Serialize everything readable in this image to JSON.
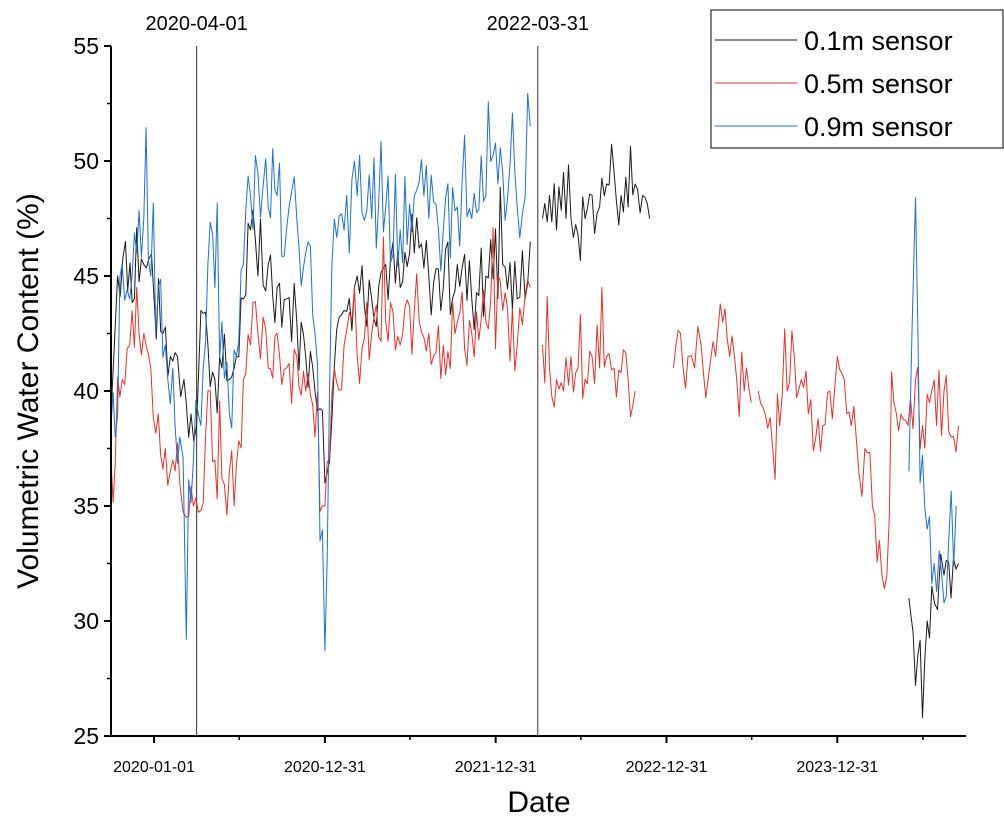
{
  "chart_data": {
    "type": "line",
    "xlabel": "Date",
    "ylabel": "Volumetric Water Content (%)",
    "xlim": [
      "2019-10-01",
      "2024-10-01"
    ],
    "ylim": [
      25,
      55
    ],
    "yticks": [
      25,
      30,
      35,
      40,
      45,
      50,
      55
    ],
    "xticks": [
      "2020-01-01",
      "2020-12-31",
      "2021-12-31",
      "2022-12-31",
      "2023-12-31"
    ],
    "reference_lines": [
      {
        "date": "2020-04-01",
        "label": "2020-04-01"
      },
      {
        "date": "2022-03-31",
        "label": "2022-03-31"
      }
    ],
    "legend": {
      "position": "top-right"
    },
    "series": [
      {
        "name": "0.1m sensor",
        "color": "#1a1a1a",
        "segments": [
          [
            [
              "2019-10-01",
              39.0
            ],
            [
              "2019-10-15",
              45.0
            ],
            [
              "2019-11-01",
              46.5
            ],
            [
              "2019-11-20",
              44.0
            ],
            [
              "2019-12-10",
              45.5
            ],
            [
              "2020-01-01",
              44.0
            ],
            [
              "2020-01-20",
              42.5
            ],
            [
              "2020-02-05",
              41.5
            ],
            [
              "2020-02-20",
              41.5
            ],
            [
              "2020-03-05",
              40.5
            ],
            [
              "2020-03-20",
              39.0
            ],
            [
              "2020-04-01",
              38.5
            ],
            [
              "2020-04-10",
              43.5
            ],
            [
              "2020-04-25",
              42.0
            ],
            [
              "2020-05-10",
              40.5
            ],
            [
              "2020-05-25",
              41.0
            ],
            [
              "2020-06-10",
              40.5
            ],
            [
              "2020-06-25",
              41.5
            ],
            [
              "2020-07-10",
              44.0
            ],
            [
              "2020-07-25",
              47.0
            ],
            [
              "2020-08-10",
              45.0
            ],
            [
              "2020-09-01",
              45.5
            ],
            [
              "2020-09-20",
              44.5
            ],
            [
              "2020-10-10",
              44.0
            ],
            [
              "2020-11-01",
              43.0
            ],
            [
              "2020-11-20",
              41.5
            ],
            [
              "2020-12-10",
              40.0
            ],
            [
              "2020-12-31",
              36.0
            ],
            [
              "2021-01-20",
              41.0
            ],
            [
              "2021-02-10",
              43.5
            ],
            [
              "2021-03-10",
              45.0
            ],
            [
              "2021-04-10",
              44.0
            ],
            [
              "2021-05-10",
              45.5
            ],
            [
              "2021-06-10",
              44.5
            ],
            [
              "2021-07-10",
              46.0
            ],
            [
              "2021-08-10",
              45.0
            ],
            [
              "2021-09-10",
              44.5
            ],
            [
              "2021-10-10",
              45.5
            ],
            [
              "2021-11-10",
              44.0
            ],
            [
              "2021-12-10",
              45.0
            ],
            [
              "2022-01-15",
              45.5
            ],
            [
              "2022-02-15",
              44.0
            ],
            [
              "2022-03-15",
              46.5
            ]
          ],
          [
            [
              "2022-04-10",
              47.5
            ],
            [
              "2022-04-25",
              48.5
            ],
            [
              "2022-05-10",
              47.0
            ],
            [
              "2022-05-25",
              49.5
            ],
            [
              "2022-06-10",
              47.5
            ],
            [
              "2022-06-25",
              46.8
            ],
            [
              "2022-07-10",
              47.5
            ],
            [
              "2022-07-25",
              48.5
            ],
            [
              "2022-08-10",
              48.0
            ],
            [
              "2022-08-25",
              49.0
            ],
            [
              "2022-09-10",
              49.5
            ],
            [
              "2022-09-25",
              48.5
            ],
            [
              "2022-10-10",
              48.0
            ],
            [
              "2022-10-25",
              49.0
            ],
            [
              "2022-11-10",
              48.5
            ],
            [
              "2022-11-25",
              47.5
            ]
          ],
          [
            [
              "2024-06-01",
              31.0
            ],
            [
              "2024-06-10",
              29.5
            ],
            [
              "2024-06-20",
              28.5
            ],
            [
              "2024-06-30",
              25.8
            ],
            [
              "2024-07-10",
              30.0
            ],
            [
              "2024-07-20",
              31.5
            ],
            [
              "2024-08-01",
              30.5
            ],
            [
              "2024-08-15",
              32.0
            ],
            [
              "2024-08-30",
              31.0
            ],
            [
              "2024-09-15",
              32.5
            ]
          ]
        ]
      },
      {
        "name": "0.5m sensor",
        "color": "#e8302b",
        "segments": [
          [
            [
              "2019-10-01",
              37.0
            ],
            [
              "2019-10-10",
              36.8
            ],
            [
              "2019-10-25",
              40.5
            ],
            [
              "2019-11-10",
              42.0
            ],
            [
              "2019-11-25",
              44.5
            ],
            [
              "2019-12-10",
              42.5
            ],
            [
              "2019-12-25",
              41.0
            ],
            [
              "2020-01-10",
              39.0
            ],
            [
              "2020-01-25",
              37.5
            ],
            [
              "2020-02-10",
              37.0
            ],
            [
              "2020-02-25",
              36.0
            ],
            [
              "2020-03-10",
              34.5
            ],
            [
              "2020-03-25",
              35.0
            ],
            [
              "2020-04-10",
              34.8
            ],
            [
              "2020-04-25",
              40.0
            ],
            [
              "2020-05-10",
              37.0
            ],
            [
              "2020-05-25",
              36.2
            ],
            [
              "2020-06-10",
              36.5
            ],
            [
              "2020-06-25",
              36.8
            ],
            [
              "2020-07-10",
              40.5
            ],
            [
              "2020-07-25",
              42.0
            ],
            [
              "2020-08-10",
              42.5
            ],
            [
              "2020-09-01",
              41.0
            ],
            [
              "2020-09-20",
              42.5
            ],
            [
              "2020-10-10",
              41.0
            ],
            [
              "2020-11-01",
              41.5
            ],
            [
              "2020-11-20",
              40.0
            ],
            [
              "2020-12-10",
              38.0
            ],
            [
              "2020-12-31",
              35.0
            ],
            [
              "2021-01-20",
              41.0
            ],
            [
              "2021-02-10",
              42.0
            ],
            [
              "2021-03-10",
              41.5
            ],
            [
              "2021-04-10",
              42.5
            ],
            [
              "2021-05-10",
              43.0
            ],
            [
              "2021-06-10",
              42.0
            ],
            [
              "2021-07-10",
              43.5
            ],
            [
              "2021-08-10",
              42.5
            ],
            [
              "2021-09-10",
              42.0
            ],
            [
              "2021-10-10",
              43.0
            ],
            [
              "2021-11-10",
              42.5
            ],
            [
              "2021-12-10",
              43.0
            ],
            [
              "2022-01-15",
              43.5
            ],
            [
              "2022-02-15",
              42.0
            ],
            [
              "2022-03-15",
              44.5
            ]
          ],
          [
            [
              "2022-04-10",
              42.0
            ],
            [
              "2022-04-25",
              41.0
            ],
            [
              "2022-05-10",
              40.5
            ],
            [
              "2022-05-25",
              40.0
            ],
            [
              "2022-06-10",
              41.5
            ],
            [
              "2022-06-25",
              41.0
            ],
            [
              "2022-07-10",
              40.5
            ],
            [
              "2022-07-25",
              41.5
            ],
            [
              "2022-08-10",
              41.0
            ],
            [
              "2022-08-25",
              41.5
            ],
            [
              "2022-09-10",
              41.0
            ],
            [
              "2022-09-25",
              40.8
            ],
            [
              "2022-10-10",
              40.5
            ],
            [
              "2022-10-25",
              40.0
            ]
          ],
          [
            [
              "2023-01-15",
              41.0
            ],
            [
              "2023-01-30",
              42.5
            ],
            [
              "2023-02-15",
              41.5
            ],
            [
              "2023-03-01",
              41.0
            ],
            [
              "2023-03-15",
              42.0
            ],
            [
              "2023-03-30",
              40.5
            ],
            [
              "2023-04-15",
              41.5
            ],
            [
              "2023-04-30",
              43.0
            ],
            [
              "2023-05-15",
              41.5
            ],
            [
              "2023-05-30",
              40.5
            ],
            [
              "2023-06-15",
              40.0
            ],
            [
              "2023-06-30",
              39.5
            ]
          ],
          [
            [
              "2023-07-15",
              40.0
            ],
            [
              "2023-07-30",
              39.0
            ],
            [
              "2023-08-15",
              37.5
            ],
            [
              "2023-08-30",
              38.5
            ],
            [
              "2023-09-15",
              40.0
            ],
            [
              "2023-09-30",
              41.5
            ],
            [
              "2023-10-15",
              40.5
            ],
            [
              "2023-10-30",
              39.0
            ],
            [
              "2023-11-15",
              38.0
            ],
            [
              "2023-11-30",
              38.5
            ],
            [
              "2023-12-15",
              40.0
            ],
            [
              "2023-12-31",
              41.5
            ],
            [
              "2024-01-15",
              40.5
            ],
            [
              "2024-01-30",
              38.5
            ],
            [
              "2024-02-15",
              36.5
            ],
            [
              "2024-02-28",
              37.5
            ],
            [
              "2024-03-15",
              35.0
            ],
            [
              "2024-03-30",
              33.5
            ],
            [
              "2024-04-15",
              32.0
            ],
            [
              "2024-04-30",
              39.5
            ],
            [
              "2024-05-15",
              39.0
            ],
            [
              "2024-05-30",
              38.5
            ],
            [
              "2024-06-15",
              40.5
            ],
            [
              "2024-06-30",
              38.5
            ],
            [
              "2024-07-15",
              39.5
            ],
            [
              "2024-07-30",
              38.5
            ],
            [
              "2024-08-15",
              40.0
            ],
            [
              "2024-08-30",
              38.0
            ],
            [
              "2024-09-15",
              38.5
            ]
          ]
        ]
      },
      {
        "name": "0.9m sensor",
        "color": "#1f6fd6",
        "segments": [
          [
            [
              "2019-10-01",
              38.5
            ],
            [
              "2019-10-10",
              38.0
            ],
            [
              "2019-10-25",
              45.5
            ],
            [
              "2019-11-10",
              44.0
            ],
            [
              "2019-11-25",
              46.0
            ],
            [
              "2019-12-10",
              47.5
            ],
            [
              "2019-12-25",
              45.0
            ],
            [
              "2020-01-10",
              44.5
            ],
            [
              "2020-01-25",
              42.0
            ],
            [
              "2020-02-10",
              41.0
            ],
            [
              "2020-02-25",
              38.0
            ],
            [
              "2020-03-10",
              29.2
            ],
            [
              "2020-03-25",
              37.0
            ],
            [
              "2020-04-10",
              38.5
            ],
            [
              "2020-04-25",
              45.5
            ],
            [
              "2020-05-10",
              44.5
            ],
            [
              "2020-05-25",
              43.0
            ],
            [
              "2020-06-10",
              39.0
            ],
            [
              "2020-06-25",
              41.5
            ],
            [
              "2020-07-10",
              45.5
            ],
            [
              "2020-07-25",
              48.5
            ],
            [
              "2020-08-10",
              49.5
            ],
            [
              "2020-09-01",
              48.0
            ],
            [
              "2020-09-20",
              48.5
            ],
            [
              "2020-10-10",
              47.0
            ],
            [
              "2020-11-01",
              47.5
            ],
            [
              "2020-11-20",
              46.0
            ],
            [
              "2020-12-10",
              42.5
            ],
            [
              "2020-12-31",
              28.7
            ],
            [
              "2021-01-15",
              45.5
            ],
            [
              "2021-02-10",
              47.0
            ],
            [
              "2021-03-10",
              48.5
            ],
            [
              "2021-04-10",
              47.5
            ],
            [
              "2021-05-10",
              48.0
            ],
            [
              "2021-06-10",
              47.0
            ],
            [
              "2021-07-10",
              48.5
            ],
            [
              "2021-08-10",
              47.5
            ],
            [
              "2021-09-10",
              47.0
            ],
            [
              "2021-10-10",
              48.0
            ],
            [
              "2021-11-10",
              47.5
            ],
            [
              "2021-12-10",
              48.5
            ],
            [
              "2022-01-15",
              49.5
            ],
            [
              "2022-02-15",
              48.0
            ],
            [
              "2022-03-15",
              51.5
            ]
          ],
          [
            [
              "2024-06-01",
              36.5
            ],
            [
              "2024-06-15",
              48.4
            ],
            [
              "2024-06-25",
              36.0
            ],
            [
              "2024-07-10",
              34.0
            ],
            [
              "2024-07-25",
              32.5
            ],
            [
              "2024-08-10",
              32.0
            ],
            [
              "2024-08-25",
              33.5
            ],
            [
              "2024-09-10",
              35.0
            ]
          ]
        ]
      }
    ]
  }
}
